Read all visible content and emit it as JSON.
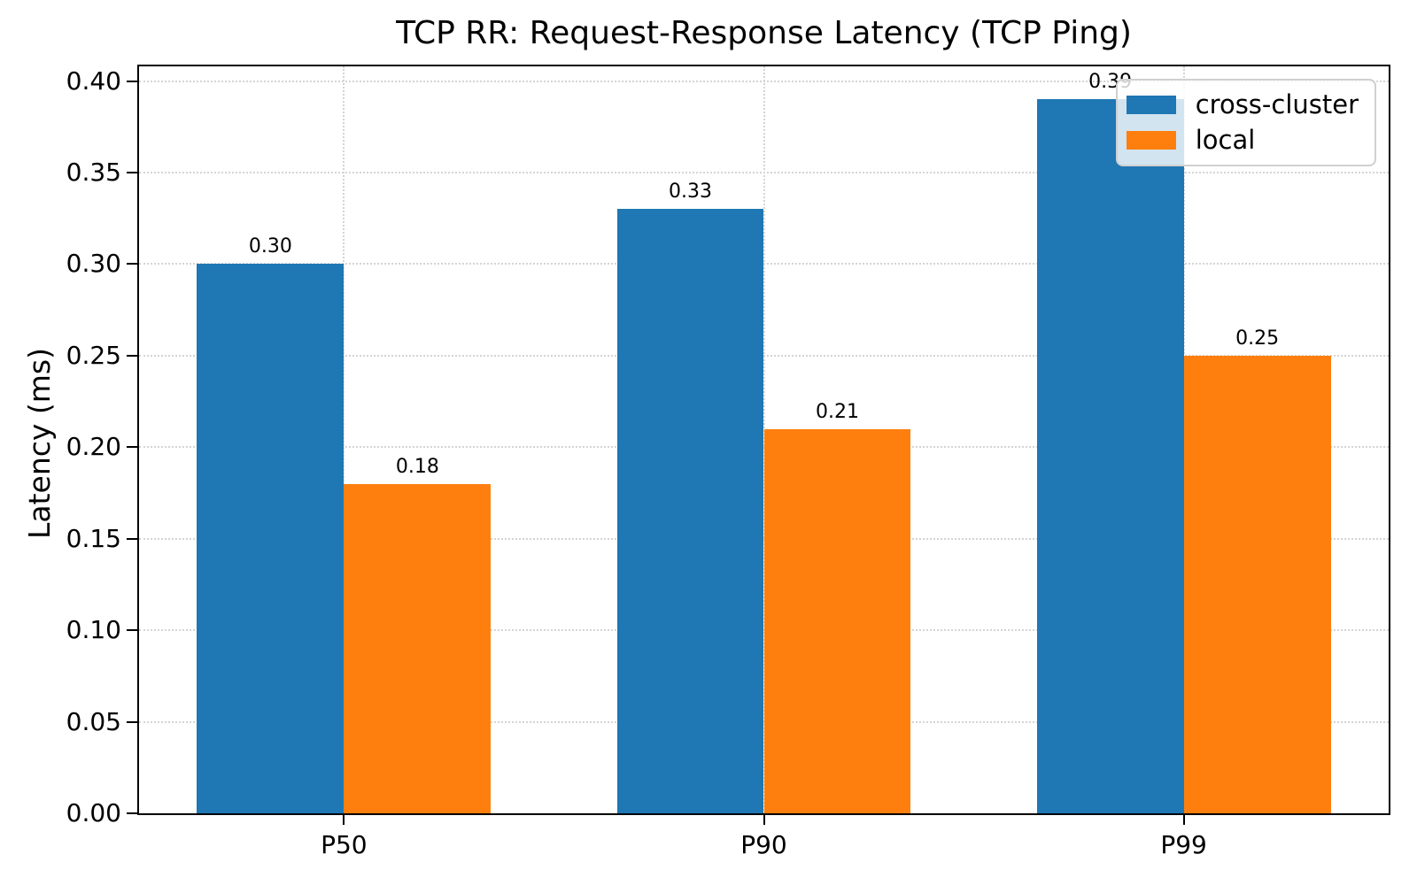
{
  "chart_data": {
    "type": "bar",
    "title": "TCP RR: Request-Response Latency (TCP Ping)",
    "xlabel": "",
    "ylabel": "Latency (ms)",
    "categories": [
      "P50",
      "P90",
      "P99"
    ],
    "series": [
      {
        "name": "cross-cluster",
        "color": "#1f77b4",
        "values": [
          0.3,
          0.33,
          0.39
        ],
        "value_labels": [
          "0.30",
          "0.33",
          "0.39"
        ]
      },
      {
        "name": "local",
        "color": "#ff7f0e",
        "values": [
          0.18,
          0.21,
          0.25
        ],
        "value_labels": [
          "0.18",
          "0.21",
          "0.25"
        ]
      }
    ],
    "ylim": [
      0,
      0.408
    ],
    "yticks": [
      "0.00",
      "0.05",
      "0.10",
      "0.15",
      "0.20",
      "0.25",
      "0.30",
      "0.35",
      "0.40"
    ],
    "grid": true,
    "grid_style": "dotted",
    "legend_position": "upper right",
    "bar_value_labels_shown": true
  },
  "colors": {
    "axis": "#000000",
    "grid": "#d4d4d4",
    "legend_border": "#d0d0d0",
    "background": "#ffffff",
    "text": "#000000"
  }
}
